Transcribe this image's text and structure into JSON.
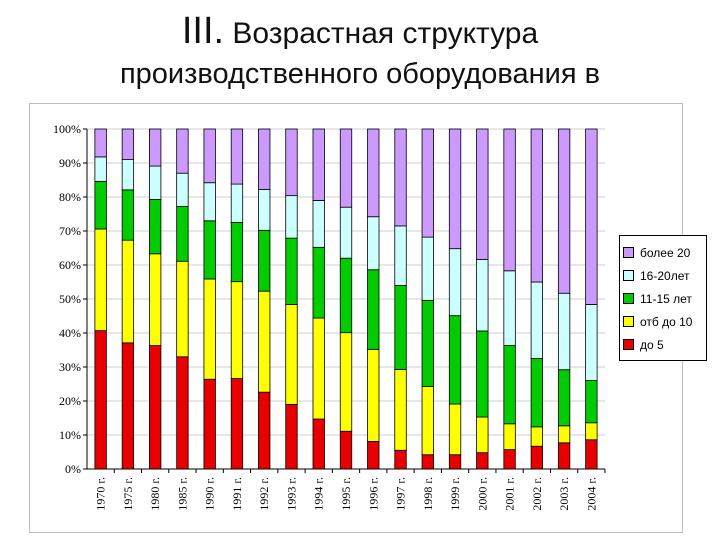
{
  "slide": {
    "title_roman": "III.",
    "title_line1": "Возрастная структура",
    "title_line2": "производственного оборудования в"
  },
  "chart_data": {
    "type": "bar",
    "stacked": true,
    "grid": true,
    "legend_position": "right",
    "ylim": [
      0,
      100
    ],
    "y_ticks": [
      "0%",
      "10%",
      "20%",
      "30%",
      "40%",
      "50%",
      "60%",
      "70%",
      "80%",
      "90%",
      "100%"
    ],
    "categories": [
      "1970 г.",
      "1975 г.",
      "1980 г.",
      "1985 г.",
      "1990 г.",
      "1991 г.",
      "1992 г.",
      "1993 г.",
      "1994 г.",
      "1995 г.",
      "1996 г.",
      "1997 г.",
      "1998 г.",
      "1999 г.",
      "2000 г.",
      "2001 г.",
      "2002 г.",
      "2003 г.",
      "2004 г."
    ],
    "series": [
      {
        "name": "до 5",
        "color": "#e80000",
        "values": [
          40.7,
          37.1,
          36.3,
          33.0,
          26.4,
          26.6,
          22.6,
          19.0,
          14.7,
          11.1,
          8.1,
          5.5,
          4.2,
          4.2,
          4.8,
          5.7,
          6.7,
          7.7,
          8.6
        ]
      },
      {
        "name": "отб до 10",
        "color": "#ffff00",
        "values": [
          29.9,
          30.2,
          27.0,
          28.1,
          29.5,
          28.5,
          29.7,
          29.4,
          29.7,
          29.0,
          27.1,
          23.8,
          20.1,
          14.9,
          10.5,
          7.6,
          5.7,
          5.0,
          5.0
        ]
      },
      {
        "name": "11-15 лет",
        "color": "#00cc00",
        "values": [
          14.0,
          14.8,
          16.0,
          16.1,
          17.1,
          17.4,
          17.9,
          19.5,
          20.8,
          21.9,
          23.4,
          24.7,
          25.3,
          26.0,
          25.3,
          23.0,
          20.1,
          16.5,
          12.4
        ]
      },
      {
        "name": "16-20лет",
        "color": "#ccffff",
        "values": [
          7.2,
          8.9,
          9.8,
          9.8,
          11.2,
          11.3,
          12.0,
          12.5,
          13.8,
          15.0,
          15.6,
          17.5,
          18.6,
          19.7,
          21.0,
          22.0,
          22.5,
          22.5,
          22.4
        ]
      },
      {
        "name": "более 20",
        "color": "#cc99ff",
        "values": [
          8.2,
          9.0,
          10.9,
          13.0,
          15.8,
          16.2,
          17.8,
          19.6,
          21.0,
          23.0,
          25.8,
          28.5,
          31.8,
          35.2,
          38.4,
          41.7,
          45.0,
          48.3,
          51.6
        ]
      }
    ]
  }
}
